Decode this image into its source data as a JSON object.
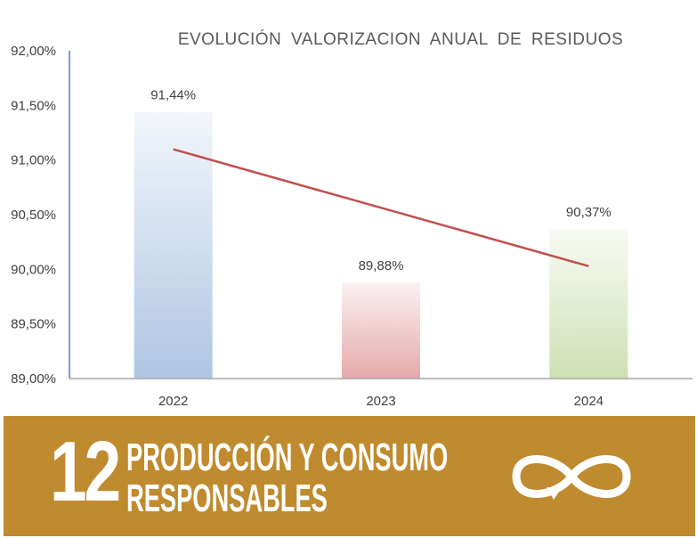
{
  "chart_data": {
    "type": "bar",
    "title": "EVOLUCIÓN  VALORIZACION  ANUAL  DE  RESIDUOS",
    "categories": [
      "2022",
      "2023",
      "2024"
    ],
    "values": [
      91.44,
      89.88,
      90.37
    ],
    "data_labels": [
      "91,44%",
      "89,88%",
      "90,37%"
    ],
    "bar_colors": [
      "#aec6e3",
      "#e5a9ab",
      "#cfe0b4"
    ],
    "trendline": {
      "type": "linear",
      "color": "#c0504d"
    },
    "ylim": [
      89.0,
      92.0
    ],
    "y_ticks": [
      {
        "value": 92.0,
        "label": "92,00%"
      },
      {
        "value": 91.5,
        "label": "91,50%"
      },
      {
        "value": 91.0,
        "label": "91,00%"
      },
      {
        "value": 90.5,
        "label": "90,50%"
      },
      {
        "value": 90.0,
        "label": "90,00%"
      },
      {
        "value": 89.5,
        "label": "89,50%"
      },
      {
        "value": 89.0,
        "label": "89,00%"
      }
    ],
    "grid": false,
    "xlabel": "",
    "ylabel": ""
  },
  "banner": {
    "number": "12",
    "title_line1": "PRODUCCIÓN Y CONSUMO",
    "title_line2": "RESPONSABLES",
    "icon": "infinity-icon",
    "color": "#bf8b2e"
  }
}
